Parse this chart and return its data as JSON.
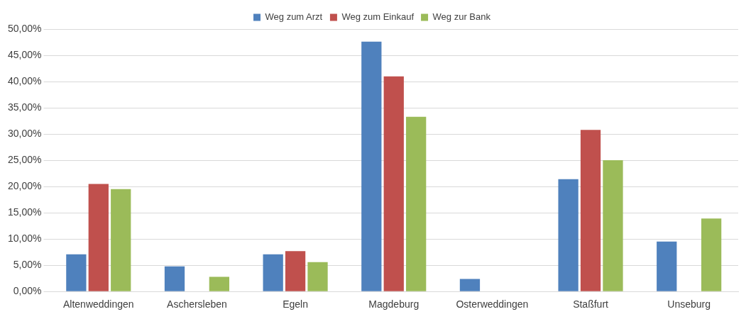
{
  "chart_data": {
    "type": "bar",
    "categories": [
      "Altenweddingen",
      "Aschersleben",
      "Egeln",
      "Magdeburg",
      "Osterweddingen",
      "Staßfurt",
      "Unseburg"
    ],
    "series": [
      {
        "name": "Weg zum Arzt",
        "color": "#4f81bd",
        "values": [
          7.1,
          4.8,
          7.1,
          47.6,
          2.4,
          21.4,
          9.5
        ]
      },
      {
        "name": "Weg zum Einkauf",
        "color": "#c0504d",
        "values": [
          20.5,
          0,
          7.7,
          41.0,
          0,
          30.8,
          0
        ]
      },
      {
        "name": "Weg zur Bank",
        "color": "#9bbb59",
        "values": [
          19.5,
          2.8,
          5.6,
          33.3,
          0,
          25.0,
          13.9
        ]
      }
    ],
    "ylim": [
      0,
      50
    ],
    "yticks": [
      {
        "value": 0,
        "label": "0,00%"
      },
      {
        "value": 5,
        "label": "5,00%"
      },
      {
        "value": 10,
        "label": "10,00%"
      },
      {
        "value": 15,
        "label": "15,00%"
      },
      {
        "value": 20,
        "label": "20,00%"
      },
      {
        "value": 25,
        "label": "25,00%"
      },
      {
        "value": 30,
        "label": "30,00%"
      },
      {
        "value": 35,
        "label": "35,00%"
      },
      {
        "value": 40,
        "label": "40,00%"
      },
      {
        "value": 45,
        "label": "45,00%"
      },
      {
        "value": 50,
        "label": "50,00%"
      }
    ],
    "grid": "y",
    "legend": "top"
  }
}
